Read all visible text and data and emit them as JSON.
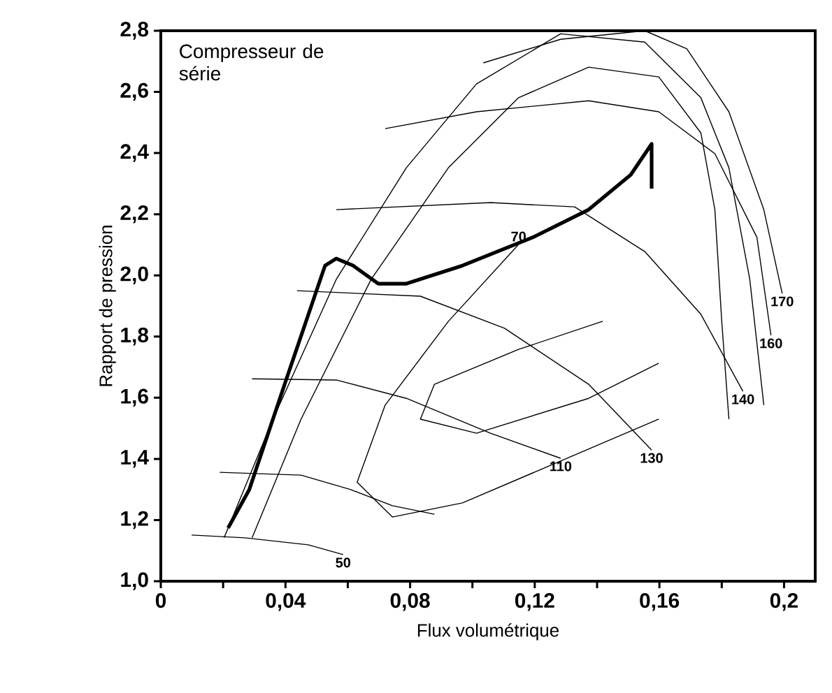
{
  "chart_data": {
    "type": "line",
    "xlabel": "Flux volumétrique",
    "ylabel": "Rapport de pression",
    "xlim": [
      0,
      0.21
    ],
    "ylim": [
      1.0,
      2.8
    ],
    "xticks": [
      {
        "value": 0,
        "label": "0"
      },
      {
        "value": 0.02,
        "label": null
      },
      {
        "value": 0.04,
        "label": "0,04"
      },
      {
        "value": 0.06,
        "label": null
      },
      {
        "value": 0.08,
        "label": "0,08"
      },
      {
        "value": 0.1,
        "label": null
      },
      {
        "value": 0.12,
        "label": "0,12"
      },
      {
        "value": 0.14,
        "label": null
      },
      {
        "value": 0.16,
        "label": "0,16"
      },
      {
        "value": 0.18,
        "label": null
      },
      {
        "value": 0.2,
        "label": "0,2"
      }
    ],
    "yticks": [
      {
        "value": 1.0,
        "label": "1,0"
      },
      {
        "value": 1.2,
        "label": "1,2"
      },
      {
        "value": 1.4,
        "label": "1,4"
      },
      {
        "value": 1.6,
        "label": "1,6"
      },
      {
        "value": 1.8,
        "label": "1,8"
      },
      {
        "value": 2.0,
        "label": "2,0"
      },
      {
        "value": 2.2,
        "label": "2,2"
      },
      {
        "value": 2.4,
        "label": "2,4"
      },
      {
        "value": 2.6,
        "label": "2,6"
      },
      {
        "value": 2.8,
        "label": "2,8"
      }
    ],
    "marker": "none",
    "line_style": "solid",
    "series": [
      {
        "color": "#000000",
        "x": [
          0.0216,
          0.0284,
          0.0405,
          0.0527,
          0.0563,
          0.0617,
          0.0698,
          0.0788,
          0.0968,
          0.1193,
          0.1373,
          0.1508,
          0.1575,
          0.1575
        ],
        "values": [
          1.174,
          1.3,
          1.667,
          2.032,
          2.055,
          2.032,
          1.973,
          1.973,
          2.032,
          2.124,
          2.215,
          2.329,
          2.43,
          2.284
        ]
      },
      {
        "name": "50",
        "color": "#000000",
        "x": [
          0.0099,
          0.027,
          0.0473,
          0.0585
        ],
        "values": [
          1.151,
          1.142,
          1.119,
          1.087
        ]
      },
      {
        "color": "#000000",
        "x": [
          0.0189,
          0.045,
          0.0608,
          0.0743,
          0.0878
        ],
        "values": [
          1.356,
          1.347,
          1.3,
          1.247,
          1.219
        ]
      },
      {
        "name": "110",
        "color": "#000000",
        "x": [
          0.0293,
          0.0563,
          0.0788,
          0.1058,
          0.1283
        ],
        "values": [
          1.662,
          1.658,
          1.598,
          1.484,
          1.402
        ]
      },
      {
        "name": "130",
        "color": "#000000",
        "x": [
          0.0437,
          0.0833,
          0.1103,
          0.1373,
          0.1575
        ],
        "values": [
          1.95,
          1.932,
          1.827,
          1.644,
          1.429
        ]
      },
      {
        "name": "140",
        "color": "#000000",
        "x": [
          0.0563,
          0.1058,
          0.1328,
          0.1553,
          0.1733,
          0.1868
        ],
        "values": [
          2.215,
          2.238,
          2.224,
          2.078,
          1.873,
          1.621
        ]
      },
      {
        "name": "160",
        "color": "#000000",
        "x": [
          0.072,
          0.1013,
          0.1373,
          0.1598,
          0.1778,
          0.1913,
          0.1958
        ],
        "values": [
          2.48,
          2.535,
          2.571,
          2.535,
          2.398,
          2.124,
          1.804
        ]
      },
      {
        "name": "170",
        "color": "#000000",
        "x": [
          0.1035,
          0.1283,
          0.1553,
          0.1688,
          0.1823,
          0.1935,
          0.1994
        ],
        "values": [
          2.695,
          2.772,
          2.8,
          2.741,
          2.535,
          2.215,
          1.941
        ]
      },
      {
        "color": "#000000",
        "x": [
          0.0203,
          0.036,
          0.0563,
          0.0788,
          0.1013,
          0.1283,
          0.1553,
          0.1733,
          0.1823,
          0.189,
          0.1935
        ],
        "values": [
          1.142,
          1.53,
          1.987,
          2.352,
          2.626,
          2.79,
          2.763,
          2.581,
          2.352,
          1.987,
          1.576
        ]
      },
      {
        "color": "#000000",
        "x": [
          0.0293,
          0.045,
          0.0675,
          0.0923,
          0.1148,
          0.1373,
          0.1598,
          0.1733,
          0.1778,
          0.18,
          0.1823
        ],
        "values": [
          1.142,
          1.53,
          1.987,
          2.352,
          2.581,
          2.681,
          2.649,
          2.466,
          2.215,
          1.85,
          1.53
        ]
      },
      {
        "name": "70",
        "color": "#000000",
        "x": [
          0.1598,
          0.1283,
          0.0968,
          0.0743,
          0.063,
          0.072,
          0.0923,
          0.1148
        ],
        "values": [
          1.53,
          1.393,
          1.256,
          1.21,
          1.324,
          1.576,
          1.85,
          2.101
        ]
      },
      {
        "color": "#000000",
        "x": [
          0.1598,
          0.1373,
          0.1013,
          0.0833,
          0.0878,
          0.1148,
          0.1418
        ],
        "values": [
          1.713,
          1.598,
          1.484,
          1.53,
          1.644,
          1.758,
          1.85
        ]
      }
    ],
    "annotations": [
      "Compresseur de série"
    ]
  }
}
